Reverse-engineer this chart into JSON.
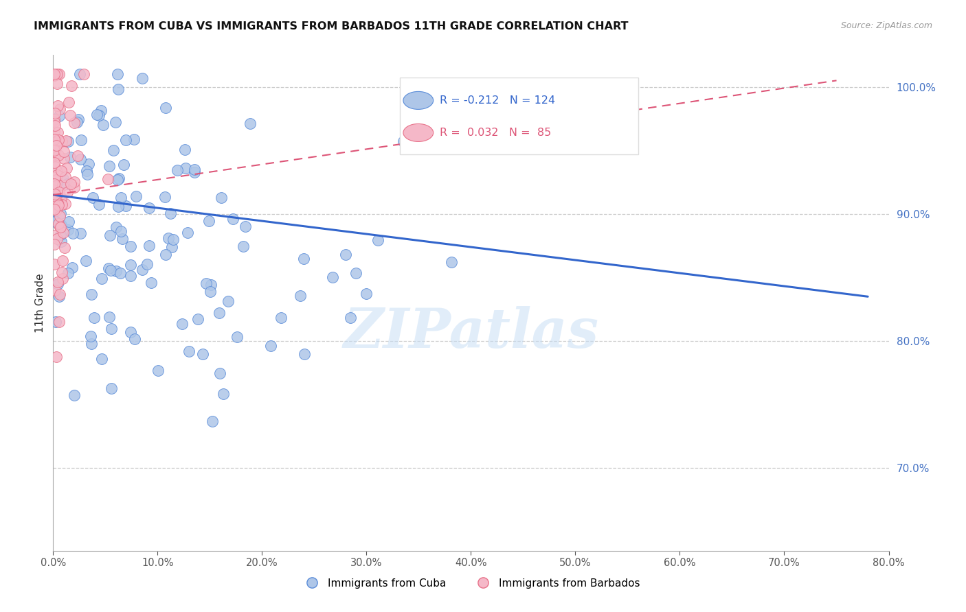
{
  "title": "IMMIGRANTS FROM CUBA VS IMMIGRANTS FROM BARBADOS 11TH GRADE CORRELATION CHART",
  "source": "Source: ZipAtlas.com",
  "ylabel": "11th Grade",
  "legend_label1": "Immigrants from Cuba",
  "legend_label2": "Immigrants from Barbados",
  "R1": -0.212,
  "N1": 124,
  "R2": 0.032,
  "N2": 85,
  "color1": "#aec6e8",
  "color2": "#f5b8c8",
  "edge_color1": "#5b8dd9",
  "edge_color2": "#e8728a",
  "line_color1": "#3366cc",
  "line_color2": "#dd5577",
  "xlim": [
    0.0,
    0.8
  ],
  "ylim": [
    0.635,
    1.025
  ],
  "yticks": [
    0.7,
    0.8,
    0.9,
    1.0
  ],
  "xticks": [
    0.0,
    0.1,
    0.2,
    0.3,
    0.4,
    0.5,
    0.6,
    0.7,
    0.8
  ],
  "watermark": "ZIPatlas",
  "blue_line_x": [
    0.0,
    0.78
  ],
  "blue_line_y": [
    0.915,
    0.835
  ],
  "pink_line_x": [
    0.0,
    0.75
  ],
  "pink_line_y": [
    0.915,
    1.005
  ]
}
